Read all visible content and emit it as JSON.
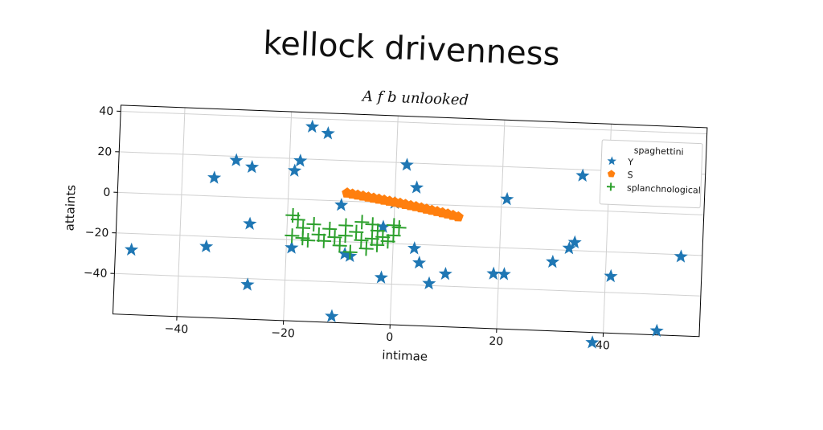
{
  "chart_data": {
    "type": "scatter",
    "title": "kellock drivenness",
    "subtitle": "A f b unlooked",
    "xlabel": "intimae",
    "ylabel": "attaints",
    "xlim": [
      -52,
      58
    ],
    "ylim": [
      -60,
      43
    ],
    "xticks": [
      -40,
      -20,
      0,
      20,
      40
    ],
    "yticks": [
      -40,
      -20,
      0,
      20,
      40
    ],
    "xtick_labels": [
      "−40",
      "−20",
      "0",
      "20",
      "40"
    ],
    "ytick_labels": [
      "−40",
      "−20",
      "0",
      "20",
      "40"
    ],
    "grid": true,
    "legend_position": "top-right",
    "legend_title": "spaghettini",
    "series": [
      {
        "name": "Y",
        "marker": "star",
        "color": "#1f77b4",
        "points": [
          [
            -49,
            -28
          ],
          [
            -35,
            -25
          ],
          [
            -34,
            9
          ],
          [
            -30,
            18
          ],
          [
            -27,
            15
          ],
          [
            -27,
            -13
          ],
          [
            -27,
            -43
          ],
          [
            -19,
            14
          ],
          [
            -19,
            -24
          ],
          [
            -18,
            19
          ],
          [
            -16,
            36
          ],
          [
            -13,
            33
          ],
          [
            -11,
            -57
          ],
          [
            -10,
            -2
          ],
          [
            -9,
            -26
          ],
          [
            -8,
            -27
          ],
          [
            -2,
            -37
          ],
          [
            -2,
            -12
          ],
          [
            0,
            0
          ],
          [
            2,
            19
          ],
          [
            4,
            -22
          ],
          [
            4,
            8
          ],
          [
            5,
            -29
          ],
          [
            7,
            -39
          ],
          [
            10,
            -34
          ],
          [
            19,
            -33
          ],
          [
            21,
            -33
          ],
          [
            21,
            4
          ],
          [
            30,
            -26
          ],
          [
            33,
            -19
          ],
          [
            34,
            -16
          ],
          [
            35,
            17
          ],
          [
            38,
            -65
          ],
          [
            41,
            -32
          ],
          [
            50,
            -58
          ],
          [
            54,
            -21
          ]
        ]
      },
      {
        "name": "S",
        "marker": "pentagon",
        "color": "#ff7f0e",
        "points": [
          [
            -9,
            4
          ],
          [
            -8,
            3.6
          ],
          [
            -7,
            3.2
          ],
          [
            -6,
            2.8
          ],
          [
            -5,
            2.4
          ],
          [
            -4,
            2.0
          ],
          [
            -3,
            1.6
          ],
          [
            -2,
            1.2
          ],
          [
            -1,
            0.8
          ],
          [
            0,
            0.4
          ],
          [
            1,
            0.0
          ],
          [
            2,
            -0.5
          ],
          [
            3,
            -1.0
          ],
          [
            4,
            -1.4
          ],
          [
            5,
            -1.9
          ],
          [
            6,
            -2.4
          ],
          [
            7,
            -2.9
          ],
          [
            8,
            -3.4
          ],
          [
            9,
            -3.9
          ],
          [
            10,
            -4.4
          ],
          [
            11,
            -5.0
          ],
          [
            12,
            -5.6
          ]
        ]
      },
      {
        "name": "splanchnological",
        "marker": "plus",
        "color": "#2ca02c",
        "points": [
          [
            -19,
            -8
          ],
          [
            -18,
            -10
          ],
          [
            -17,
            -14
          ],
          [
            -19,
            -18
          ],
          [
            -17,
            -19
          ],
          [
            -15,
            -12
          ],
          [
            -14,
            -17
          ],
          [
            -13,
            -20
          ],
          [
            -12,
            -14
          ],
          [
            -11,
            -18
          ],
          [
            -10,
            -22
          ],
          [
            -9,
            -17
          ],
          [
            -8,
            -25
          ],
          [
            -7,
            -15
          ],
          [
            -6,
            -19
          ],
          [
            -5,
            -23
          ],
          [
            -4,
            -18
          ],
          [
            -3,
            -14
          ],
          [
            -3,
            -21
          ],
          [
            -2,
            -17
          ],
          [
            -1,
            -19
          ],
          [
            0,
            -16
          ],
          [
            0,
            -11
          ],
          [
            1,
            -12
          ],
          [
            -6,
            -10
          ],
          [
            -9,
            -12
          ],
          [
            -16,
            -20
          ],
          [
            -4,
            -11
          ]
        ]
      }
    ]
  }
}
